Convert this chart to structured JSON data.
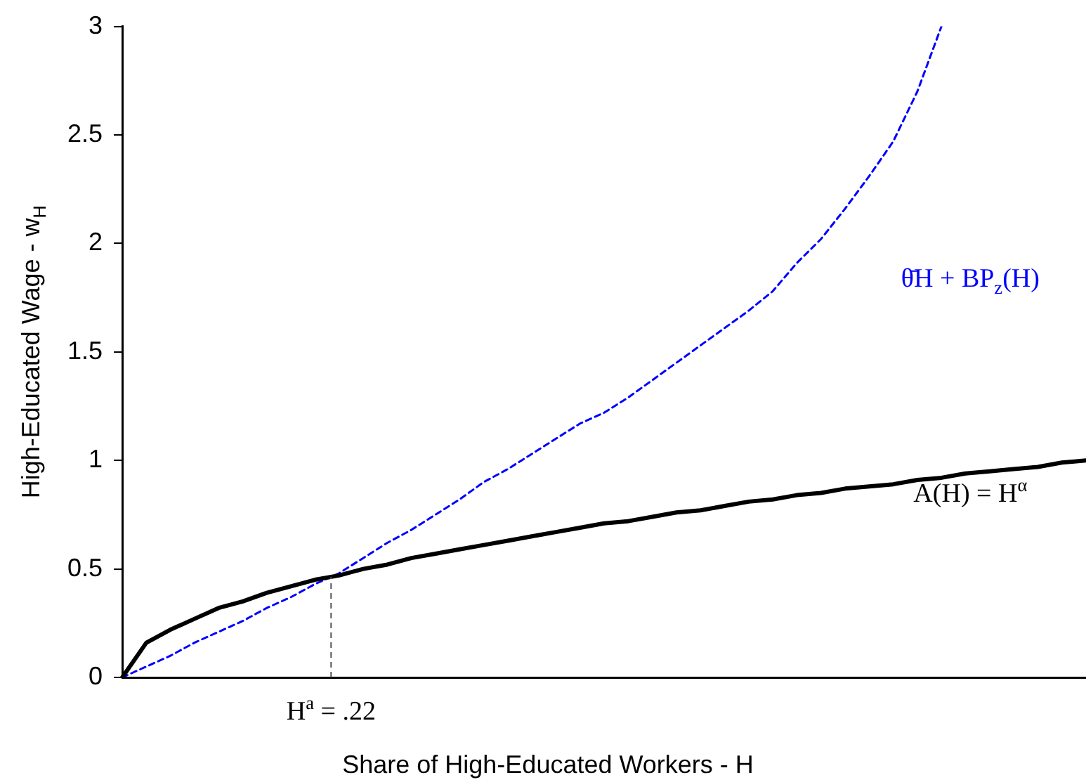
{
  "chart_data": {
    "type": "line",
    "xlabel": "Share of High-Educated Workers - H",
    "ylabel": "High-Educated Wage - w$_{H}$",
    "categories": [
      null,
      null,
      null,
      null,
      null,
      null,
      null,
      null,
      null,
      null,
      null,
      null,
      null,
      null,
      null,
      null,
      null,
      null,
      null,
      null,
      null,
      null,
      null,
      null,
      null,
      null,
      null,
      null,
      null,
      null,
      null,
      null,
      null,
      null,
      null,
      null,
      null,
      null,
      null,
      null,
      null
    ],
    "series": [
      {
        "name": "A(H) = H$^{α}$",
        "color": "#000000",
        "line_style": "solid",
        "values": [
          0,
          0.16,
          0.22,
          0.27,
          0.32,
          0.35,
          0.39,
          0.42,
          0.45,
          0.47,
          0.5,
          0.52,
          0.55,
          0.57,
          0.59,
          0.61,
          0.63,
          0.65,
          0.67,
          0.69,
          0.71,
          0.72,
          0.74,
          0.76,
          0.77,
          0.79,
          0.81,
          0.82,
          0.84,
          0.85,
          0.87,
          0.88,
          0.89,
          0.91,
          0.92,
          0.94,
          0.95,
          0.96,
          0.97,
          0.99,
          1
        ]
      },
      {
        "name": "θ̄H + BP$_{z}$(H)",
        "color": "#0000ff",
        "line_style": "dashed",
        "values": [
          0,
          0.05,
          0.1,
          0.16,
          0.21,
          0.26,
          0.32,
          0.37,
          0.43,
          0.48,
          0.55,
          0.62,
          0.68,
          0.75,
          0.82,
          0.9,
          0.96,
          1.03,
          1.1,
          1.17,
          1.22,
          1.29,
          1.37,
          1.45,
          1.53,
          1.61,
          1.69,
          1.78,
          1.91,
          2.02,
          2.16,
          2.31,
          2.47,
          2.7,
          3.0,
          null,
          null,
          null,
          null,
          null,
          null
        ]
      }
    ],
    "ylim": [
      0,
      3
    ],
    "yticks": [
      0,
      0.5,
      1,
      1.5,
      2,
      2.5,
      3
    ],
    "tick_labels": "y",
    "grid": false,
    "legend": false,
    "marker": "none",
    "annotations": [
      "H$^{a}$ = .22"
    ]
  }
}
